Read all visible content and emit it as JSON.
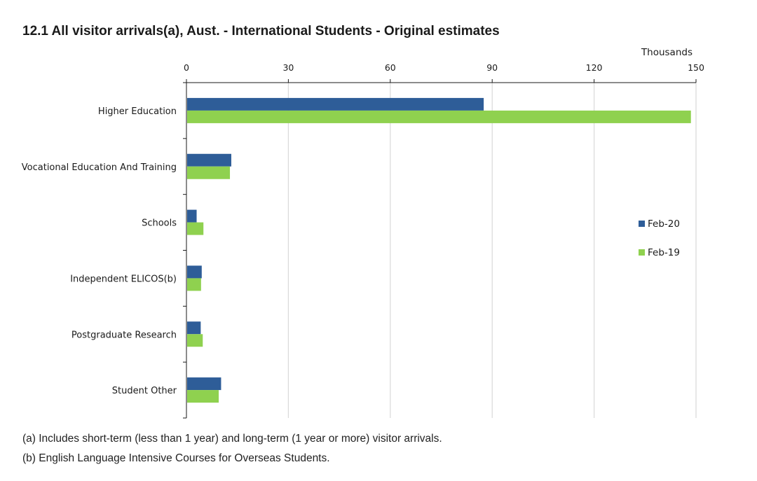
{
  "title": "12.1 All visitor arrivals(a), Aust. - International Students - Original estimates",
  "notes": [
    "(a) Includes short-term (less than 1 year) and long-term (1 year or more) visitor arrivals.",
    "(b) English Language Intensive Courses for Overseas Students."
  ],
  "colors": {
    "feb20": "#2e5d98",
    "feb19": "#8fd14f",
    "grid": "#d9d9d9",
    "axis": "#1a1a1a"
  },
  "chart_data": {
    "type": "bar",
    "orientation": "horizontal",
    "unit_label": "Thousands",
    "xlim": [
      0,
      150
    ],
    "ticks": [
      "0",
      "30",
      "60",
      "90",
      "120",
      "150"
    ],
    "tick_values": [
      0,
      30,
      60,
      90,
      120,
      150
    ],
    "grid": true,
    "legend_position": "right",
    "categories": [
      "Higher Education",
      "Vocational Education And Training",
      "Schools",
      "Independent ELICOS(b)",
      "Postgraduate Research",
      "Student Other"
    ],
    "series": [
      {
        "name": "Feb-20",
        "values": [
          87.5,
          13.2,
          3.0,
          4.5,
          4.2,
          10.2
        ]
      },
      {
        "name": "Feb-19",
        "values": [
          148.5,
          12.8,
          5.0,
          4.3,
          4.8,
          9.5
        ]
      }
    ]
  }
}
